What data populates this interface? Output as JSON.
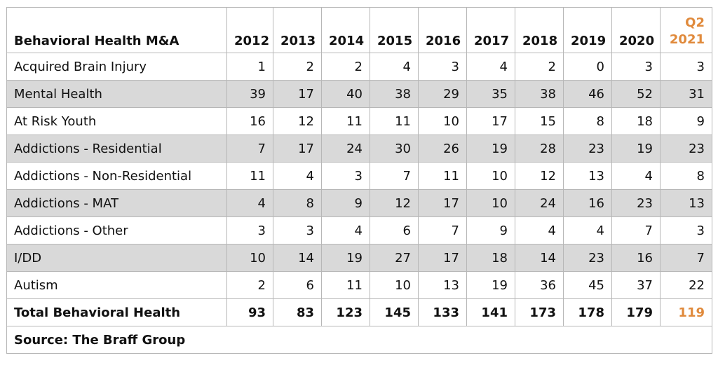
{
  "chart_data": {
    "type": "table",
    "header_label": "Behavioral Health M&A",
    "columns": [
      "2012",
      "2013",
      "2014",
      "2015",
      "2016",
      "2017",
      "2018",
      "2019",
      "2020"
    ],
    "last_column": {
      "line1": "Q2",
      "line2": "2021"
    },
    "rows": [
      {
        "label": "Acquired Brain Injury",
        "values": [
          "1",
          "2",
          "2",
          "4",
          "3",
          "4",
          "2",
          "0",
          "3",
          "3"
        ]
      },
      {
        "label": "Mental Health",
        "values": [
          "39",
          "17",
          "40",
          "38",
          "29",
          "35",
          "38",
          "46",
          "52",
          "31"
        ]
      },
      {
        "label": "At Risk Youth",
        "values": [
          "16",
          "12",
          "11",
          "11",
          "10",
          "17",
          "15",
          "8",
          "18",
          "9"
        ]
      },
      {
        "label": "Addictions - Residential",
        "values": [
          "7",
          "17",
          "24",
          "30",
          "26",
          "19",
          "28",
          "23",
          "19",
          "23"
        ]
      },
      {
        "label": "Addictions - Non-Residential",
        "values": [
          "11",
          "4",
          "3",
          "7",
          "11",
          "10",
          "12",
          "13",
          "4",
          "8"
        ]
      },
      {
        "label": "Addictions - MAT",
        "values": [
          "4",
          "8",
          "9",
          "12",
          "17",
          "10",
          "24",
          "16",
          "23",
          "13"
        ]
      },
      {
        "label": "Addictions - Other",
        "values": [
          "3",
          "3",
          "4",
          "6",
          "7",
          "9",
          "4",
          "4",
          "7",
          "3"
        ]
      },
      {
        "label": "I/DD",
        "values": [
          "10",
          "14",
          "19",
          "27",
          "17",
          "18",
          "14",
          "23",
          "16",
          "7"
        ]
      },
      {
        "label": "Autism",
        "values": [
          "2",
          "6",
          "11",
          "10",
          "13",
          "19",
          "36",
          "45",
          "37",
          "22"
        ]
      }
    ],
    "total": {
      "label": "Total Behavioral Health",
      "values": [
        "93",
        "83",
        "123",
        "145",
        "133",
        "141",
        "173",
        "178",
        "179",
        "119"
      ]
    },
    "source": "Source: The Braff Group"
  },
  "colors": {
    "accent": "#e08a3c",
    "shade": "#d9d9d9",
    "border": "#b7b7b7"
  }
}
